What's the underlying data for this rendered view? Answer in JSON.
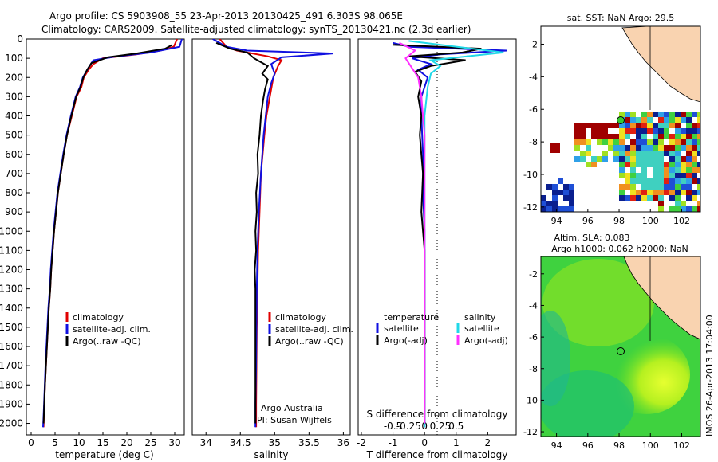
{
  "header": {
    "line1": "Argo profile: CS 5903908_55 23-Apr-2013 20130425_491 6.303S 98.065E",
    "line2": "Climatology: CARS2009. Satellite-adjusted climatology: synTS_20130421.nc (2.3d earlier)"
  },
  "colors": {
    "climatology": "#e00000",
    "satellite": "#1010e0",
    "argo": "#000000",
    "sat_s": "#20d8e8",
    "argo_s": "#ff30ff"
  },
  "depth_ticks": [
    "0",
    "100",
    "200",
    "300",
    "400",
    "500",
    "600",
    "700",
    "800",
    "900",
    "1000",
    "1100",
    "1200",
    "1300",
    "1400",
    "1500",
    "1600",
    "1700",
    "1800",
    "1900",
    "2000"
  ],
  "chart_data": [
    {
      "type": "line",
      "id": "temperature",
      "xlabel": "temperature (deg C)",
      "ylabel": "",
      "xlim": [
        -1,
        32
      ],
      "ylim": [
        2060,
        0
      ],
      "xticks": [
        "0",
        "5",
        "10",
        "15",
        "20",
        "25",
        "30"
      ],
      "legend": [
        "climatology",
        "satellite-adj. clim.",
        "Argo(..raw -QC)"
      ],
      "series": [
        {
          "name": "climatology",
          "color": "#e00000",
          "points": [
            [
              30.5,
              0
            ],
            [
              29.8,
              40
            ],
            [
              27,
              60
            ],
            [
              22,
              80
            ],
            [
              15,
              100
            ],
            [
              13,
              130
            ],
            [
              12,
              160
            ],
            [
              11,
              200
            ],
            [
              10.5,
              250
            ],
            [
              9.5,
              300
            ],
            [
              8.5,
              400
            ],
            [
              7.5,
              500
            ],
            [
              6.8,
              600
            ],
            [
              6.2,
              700
            ],
            [
              5.6,
              800
            ],
            [
              5.2,
              900
            ],
            [
              4.8,
              1000
            ],
            [
              4.5,
              1100
            ],
            [
              4.2,
              1200
            ],
            [
              4,
              1300
            ],
            [
              3.7,
              1400
            ],
            [
              3.5,
              1500
            ],
            [
              3.3,
              1600
            ],
            [
              3.1,
              1700
            ],
            [
              2.9,
              1800
            ],
            [
              2.75,
              1900
            ],
            [
              2.6,
              2020
            ]
          ]
        },
        {
          "name": "satellite-adj. clim.",
          "color": "#1010e0",
          "points": [
            [
              31.5,
              0
            ],
            [
              31,
              40
            ],
            [
              25,
              70
            ],
            [
              18,
              90
            ],
            [
              13,
              110
            ],
            [
              12.2,
              140
            ],
            [
              11.5,
              170
            ],
            [
              10.8,
              200
            ],
            [
              10.2,
              250
            ],
            [
              9.3,
              300
            ],
            [
              8.3,
              400
            ],
            [
              7.4,
              500
            ],
            [
              6.7,
              600
            ],
            [
              6.1,
              700
            ],
            [
              5.5,
              800
            ],
            [
              5.1,
              900
            ],
            [
              4.7,
              1000
            ],
            [
              4.4,
              1100
            ],
            [
              4.1,
              1200
            ],
            [
              3.9,
              1300
            ],
            [
              3.6,
              1400
            ],
            [
              3.4,
              1500
            ],
            [
              3.2,
              1600
            ],
            [
              3,
              1700
            ],
            [
              2.85,
              1800
            ],
            [
              2.7,
              1900
            ],
            [
              2.5,
              2020
            ]
          ]
        },
        {
          "name": "Argo(..raw -QC)",
          "color": "#000000",
          "points": [
            [
              29.5,
              30
            ],
            [
              28,
              50
            ],
            [
              22,
              75
            ],
            [
              16,
              95
            ],
            [
              12.6,
              125
            ],
            [
              11.7,
              160
            ],
            [
              10.9,
              200
            ],
            [
              10.3,
              250
            ],
            [
              9.4,
              300
            ],
            [
              8.4,
              400
            ],
            [
              7.5,
              500
            ],
            [
              6.8,
              600
            ],
            [
              6.2,
              700
            ],
            [
              5.6,
              800
            ],
            [
              5.2,
              900
            ],
            [
              4.8,
              1000
            ],
            [
              4.5,
              1100
            ],
            [
              4.2,
              1200
            ],
            [
              4,
              1300
            ],
            [
              3.7,
              1400
            ],
            [
              3.5,
              1500
            ],
            [
              3.3,
              1600
            ],
            [
              3.1,
              1700
            ],
            [
              2.9,
              1800
            ],
            [
              2.75,
              1900
            ],
            [
              2.6,
              2000
            ]
          ]
        }
      ]
    },
    {
      "type": "line",
      "id": "salinity",
      "xlabel": "salinity",
      "xlim": [
        33.8,
        36.1
      ],
      "ylim": [
        2060,
        0
      ],
      "xticks": [
        "34",
        "34.5",
        "35",
        "35.5",
        "36"
      ],
      "legend": [
        "climatology",
        "satellite-adj. clim.",
        "Argo(..raw -QC)"
      ],
      "annotation": [
        "Argo Australia",
        "PI: Susan Wijffels"
      ],
      "series": [
        {
          "name": "climatology",
          "color": "#e00000",
          "points": [
            [
              34.2,
              0
            ],
            [
              34.3,
              40
            ],
            [
              34.45,
              60
            ],
            [
              34.9,
              90
            ],
            [
              35.1,
              110
            ],
            [
              35.05,
              140
            ],
            [
              34.98,
              200
            ],
            [
              34.93,
              300
            ],
            [
              34.88,
              400
            ],
            [
              34.85,
              500
            ],
            [
              34.8,
              700
            ],
            [
              34.78,
              900
            ],
            [
              34.76,
              1100
            ],
            [
              34.75,
              1300
            ],
            [
              34.74,
              1500
            ],
            [
              34.735,
              1700
            ],
            [
              34.73,
              1900
            ],
            [
              34.73,
              2020
            ]
          ]
        },
        {
          "name": "satellite-adj. clim.",
          "color": "#1010e0",
          "points": [
            [
              34.1,
              0
            ],
            [
              34.3,
              40
            ],
            [
              34.6,
              60
            ],
            [
              35.85,
              75
            ],
            [
              35.1,
              95
            ],
            [
              34.95,
              130
            ],
            [
              35,
              180
            ],
            [
              34.95,
              230
            ],
            [
              34.9,
              300
            ],
            [
              34.87,
              400
            ],
            [
              34.84,
              500
            ],
            [
              34.8,
              700
            ],
            [
              34.77,
              900
            ],
            [
              34.75,
              1100
            ],
            [
              34.74,
              1300
            ],
            [
              34.735,
              1500
            ],
            [
              34.73,
              1700
            ],
            [
              34.72,
              1900
            ],
            [
              34.72,
              2020
            ]
          ]
        },
        {
          "name": "Argo(..raw -QC)",
          "color": "#000000",
          "points": [
            [
              34.15,
              20
            ],
            [
              34.35,
              50
            ],
            [
              34.6,
              70
            ],
            [
              34.7,
              100
            ],
            [
              34.8,
              120
            ],
            [
              34.9,
              140
            ],
            [
              34.82,
              180
            ],
            [
              34.9,
              210
            ],
            [
              34.86,
              260
            ],
            [
              34.83,
              320
            ],
            [
              34.8,
              400
            ],
            [
              34.78,
              500
            ],
            [
              34.75,
              600
            ],
            [
              34.76,
              700
            ],
            [
              34.73,
              800
            ],
            [
              34.74,
              900
            ],
            [
              34.72,
              1000
            ],
            [
              34.73,
              1100
            ],
            [
              34.71,
              1200
            ],
            [
              34.72,
              1300
            ],
            [
              34.72,
              1500
            ],
            [
              34.72,
              1700
            ],
            [
              34.72,
              1900
            ],
            [
              34.72,
              2000
            ]
          ]
        }
      ]
    },
    {
      "type": "line",
      "id": "difference",
      "xlabel": "T difference from climatology",
      "xlabel2": "S difference from climatology",
      "xlim": [
        -2.1,
        2.9
      ],
      "ylim": [
        2060,
        0
      ],
      "xticks": [
        "-2",
        "-1",
        "0",
        "1",
        "2"
      ],
      "xticks_s": [
        "-0.5",
        "-0.25",
        "0",
        "0.25",
        "0.5"
      ],
      "legend_t": {
        "title": "temperature",
        "items": [
          "satellite",
          "Argo(-adj)"
        ]
      },
      "legend_s": {
        "title": "salinity",
        "items": [
          "satellite",
          "Argo(-adj)"
        ]
      },
      "series": [
        {
          "name": "T satellite",
          "color": "#1010e0",
          "points": [
            [
              -1,
              20
            ],
            [
              -0.5,
              40
            ],
            [
              2.6,
              60
            ],
            [
              0.5,
              80
            ],
            [
              -0.4,
              100
            ],
            [
              0.2,
              130
            ],
            [
              -0.2,
              160
            ],
            [
              0.1,
              200
            ],
            [
              -0.1,
              300
            ],
            [
              -0.1,
              400
            ],
            [
              -0.05,
              600
            ],
            [
              -0.05,
              800
            ],
            [
              0,
              1000
            ],
            [
              0,
              1300
            ],
            [
              0,
              1600
            ],
            [
              0,
              1900
            ],
            [
              0,
              2020
            ]
          ]
        },
        {
          "name": "T Argo(-adj)",
          "color": "#000000",
          "points": [
            [
              -1,
              30
            ],
            [
              1.8,
              50
            ],
            [
              1.2,
              70
            ],
            [
              -0.5,
              90
            ],
            [
              1.3,
              110
            ],
            [
              0.2,
              140
            ],
            [
              -0.3,
              170
            ],
            [
              -0.1,
              220
            ],
            [
              -0.2,
              300
            ],
            [
              -0.1,
              400
            ],
            [
              -0.15,
              500
            ],
            [
              -0.05,
              700
            ],
            [
              -0.1,
              900
            ],
            [
              0,
              1100
            ],
            [
              0,
              1300
            ],
            [
              0,
              1500
            ],
            [
              0,
              1700
            ],
            [
              0,
              1900
            ],
            [
              0,
              2000
            ]
          ]
        },
        {
          "name": "S satellite",
          "color": "#20d8e8",
          "points": [
            [
              -0.5,
              10
            ],
            [
              2.5,
              70
            ],
            [
              0.2,
              110
            ],
            [
              0.5,
              140
            ],
            [
              0.2,
              180
            ],
            [
              0.1,
              250
            ],
            [
              0,
              400
            ],
            [
              0,
              700
            ],
            [
              0,
              1000
            ],
            [
              0,
              1400
            ],
            [
              0,
              1800
            ],
            [
              0,
              2020
            ]
          ]
        },
        {
          "name": "S Argo(-adj)",
          "color": "#ff30ff",
          "points": [
            [
              -0.8,
              20
            ],
            [
              -0.3,
              60
            ],
            [
              -0.6,
              100
            ],
            [
              -0.4,
              150
            ],
            [
              -0.2,
              200
            ],
            [
              -0.1,
              300
            ],
            [
              0,
              500
            ],
            [
              0,
              800
            ],
            [
              0,
              1200
            ],
            [
              0,
              1600
            ],
            [
              0,
              2000
            ]
          ]
        }
      ]
    },
    {
      "type": "heatmap",
      "id": "sst_map",
      "title": "sat. SST: NaN  Argo: 29.5",
      "xlim": [
        93,
        103.2
      ],
      "ylim": [
        -12.3,
        -0.9
      ],
      "xticks": [
        "94",
        "96",
        "98",
        "100",
        "102"
      ],
      "yticks": [
        "-2",
        "-4",
        "-6",
        "-8",
        "-10",
        "-12"
      ],
      "argo_position": [
        98.065,
        -6.303
      ]
    },
    {
      "type": "heatmap",
      "id": "sla_map",
      "title": "Altim. SLA: 0.083",
      "subtitle": "Argo h1000: 0.062  h2000: NaN",
      "xlim": [
        93,
        103.2
      ],
      "ylim": [
        -12.3,
        -0.9
      ],
      "xticks": [
        "94",
        "96",
        "98",
        "100",
        "102"
      ],
      "yticks": [
        "-2",
        "-4",
        "-6",
        "-8",
        "-10",
        "-12"
      ],
      "argo_position": [
        98.065,
        -6.303
      ]
    }
  ],
  "timestamp": "IMOS 26-Apr-2013 17:04:00"
}
